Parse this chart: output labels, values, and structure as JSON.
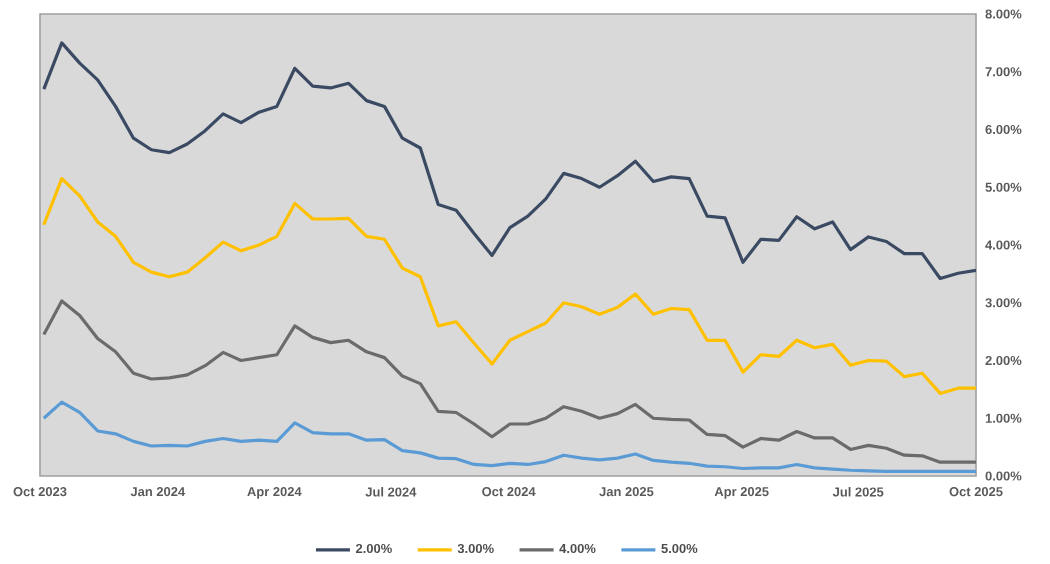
{
  "chart_data": {
    "type": "line",
    "x": [
      "2023-10-04",
      "2023-10-18",
      "2023-11-01",
      "2023-11-15",
      "2023-11-29",
      "2023-12-13",
      "2023-12-27",
      "2024-01-10",
      "2024-01-24",
      "2024-02-07",
      "2024-02-21",
      "2024-03-06",
      "2024-03-20",
      "2024-04-03",
      "2024-04-17",
      "2024-05-01",
      "2024-05-15",
      "2024-05-29",
      "2024-06-12",
      "2024-06-26",
      "2024-07-10",
      "2024-07-24",
      "2024-08-07",
      "2024-08-21",
      "2024-09-04",
      "2024-09-18",
      "2024-10-02",
      "2024-10-16",
      "2024-10-30",
      "2024-11-13",
      "2024-11-27",
      "2024-12-11",
      "2024-12-25",
      "2025-01-08",
      "2025-01-22",
      "2025-02-05",
      "2025-02-19",
      "2025-03-05",
      "2025-03-19",
      "2025-04-02",
      "2025-04-16",
      "2025-04-30",
      "2025-05-14",
      "2025-05-28",
      "2025-06-11",
      "2025-06-25",
      "2025-07-09",
      "2025-07-23",
      "2025-08-06",
      "2025-08-20",
      "2025-09-03",
      "2025-09-17",
      "2025-10-01"
    ],
    "series": [
      {
        "name": "2.00%",
        "color": "#3b4a63",
        "values": [
          6.7,
          7.5,
          7.15,
          6.86,
          6.4,
          5.85,
          5.65,
          5.6,
          5.75,
          5.98,
          6.27,
          6.12,
          6.3,
          6.4,
          7.06,
          6.75,
          6.72,
          6.8,
          6.5,
          6.4,
          5.85,
          5.68,
          4.7,
          4.6,
          4.2,
          3.82,
          4.3,
          4.5,
          4.8,
          5.24,
          5.15,
          5.0,
          5.2,
          5.45,
          5.1,
          5.18,
          5.15,
          4.5,
          4.47,
          3.7,
          4.1,
          4.08,
          4.49,
          4.28,
          4.4,
          3.92,
          4.14,
          4.06,
          3.85,
          3.85,
          3.42,
          3.51,
          3.56
        ]
      },
      {
        "name": "3.00%",
        "color": "#ffc000",
        "values": [
          4.35,
          5.15,
          4.85,
          4.4,
          4.15,
          3.7,
          3.53,
          3.45,
          3.53,
          3.78,
          4.05,
          3.9,
          4.0,
          4.15,
          4.72,
          4.45,
          4.45,
          4.46,
          4.15,
          4.1,
          3.6,
          3.45,
          2.6,
          2.67,
          2.3,
          1.94,
          2.35,
          2.5,
          2.65,
          3.0,
          2.93,
          2.8,
          2.92,
          3.15,
          2.8,
          2.9,
          2.88,
          2.35,
          2.35,
          1.8,
          2.1,
          2.07,
          2.35,
          2.22,
          2.28,
          1.92,
          2.0,
          1.99,
          1.72,
          1.78,
          1.43,
          1.52,
          1.52
        ]
      },
      {
        "name": "4.00%",
        "color": "#6b6b6b",
        "values": [
          2.45,
          3.03,
          2.78,
          2.38,
          2.15,
          1.78,
          1.68,
          1.7,
          1.75,
          1.91,
          2.14,
          2.0,
          2.05,
          2.1,
          2.6,
          2.4,
          2.31,
          2.35,
          2.15,
          2.05,
          1.73,
          1.6,
          1.12,
          1.1,
          0.9,
          0.68,
          0.9,
          0.9,
          1.0,
          1.2,
          1.12,
          1.0,
          1.08,
          1.24,
          1.0,
          0.98,
          0.97,
          0.72,
          0.7,
          0.5,
          0.65,
          0.62,
          0.77,
          0.66,
          0.66,
          0.46,
          0.53,
          0.48,
          0.36,
          0.35,
          0.24,
          0.24,
          0.24
        ]
      },
      {
        "name": "5.00%",
        "color": "#5b9bd5",
        "values": [
          1.0,
          1.28,
          1.1,
          0.78,
          0.73,
          0.6,
          0.52,
          0.53,
          0.52,
          0.6,
          0.65,
          0.6,
          0.62,
          0.6,
          0.92,
          0.75,
          0.73,
          0.73,
          0.62,
          0.63,
          0.44,
          0.4,
          0.31,
          0.3,
          0.2,
          0.18,
          0.22,
          0.2,
          0.25,
          0.36,
          0.31,
          0.28,
          0.31,
          0.38,
          0.27,
          0.24,
          0.22,
          0.17,
          0.16,
          0.13,
          0.14,
          0.14,
          0.2,
          0.14,
          0.12,
          0.1,
          0.09,
          0.08,
          0.08,
          0.08,
          0.08,
          0.08,
          0.08
        ]
      }
    ],
    "xlim": [
      "2023-10-01",
      "2025-10-01"
    ],
    "xticks": [
      {
        "value": "2023-10-01",
        "label": "Oct 2023"
      },
      {
        "value": "2024-01-01",
        "label": "Jan 2024"
      },
      {
        "value": "2024-04-01",
        "label": "Apr 2024"
      },
      {
        "value": "2024-07-01",
        "label": "Jul 2024"
      },
      {
        "value": "2024-10-01",
        "label": "Oct 2024"
      },
      {
        "value": "2025-01-01",
        "label": "Jan 2025"
      },
      {
        "value": "2025-04-01",
        "label": "Apr 2025"
      },
      {
        "value": "2025-07-01",
        "label": "Jul 2025"
      },
      {
        "value": "2025-10-01",
        "label": "Oct 2025"
      }
    ],
    "ylim": [
      0,
      8
    ],
    "yticks": [
      {
        "value": 0,
        "label": "0.00%"
      },
      {
        "value": 1,
        "label": "1.00%"
      },
      {
        "value": 2,
        "label": "2.00%"
      },
      {
        "value": 3,
        "label": "3.00%"
      },
      {
        "value": 4,
        "label": "4.00%"
      },
      {
        "value": 5,
        "label": "5.00%"
      },
      {
        "value": 6,
        "label": "6.00%"
      },
      {
        "value": 7,
        "label": "7.00%"
      },
      {
        "value": 8,
        "label": "8.00%"
      }
    ],
    "legend": "bottom"
  }
}
